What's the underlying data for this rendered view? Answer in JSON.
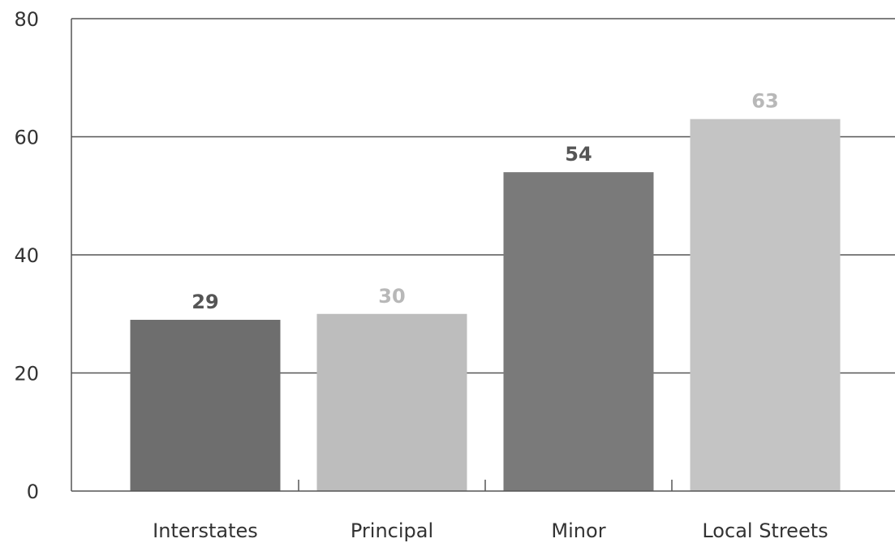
{
  "chart_data": {
    "type": "bar",
    "title": "",
    "xlabel": "",
    "ylabel": "",
    "categories": [
      "Interstates",
      "Principal",
      "Minor",
      "Local Streets"
    ],
    "values": [
      29,
      30,
      54,
      63
    ],
    "data_labels": [
      "29",
      "30",
      "54",
      "63"
    ],
    "ylim": [
      0,
      80
    ],
    "yticks": [
      0,
      20,
      40,
      60,
      80
    ],
    "ytick_labels": [
      "0",
      "20",
      "40",
      "60",
      "80"
    ],
    "grid": true,
    "legend": "none",
    "colors": {
      "bars": [
        "#6e6e6e",
        "#bdbdbd",
        "#7a7a7a",
        "#c4c4c4"
      ],
      "labels": [
        "#555555",
        "#b8b8b8",
        "#555555",
        "#b8b8b8"
      ],
      "grid": "#555555",
      "axis": "#555555"
    }
  }
}
